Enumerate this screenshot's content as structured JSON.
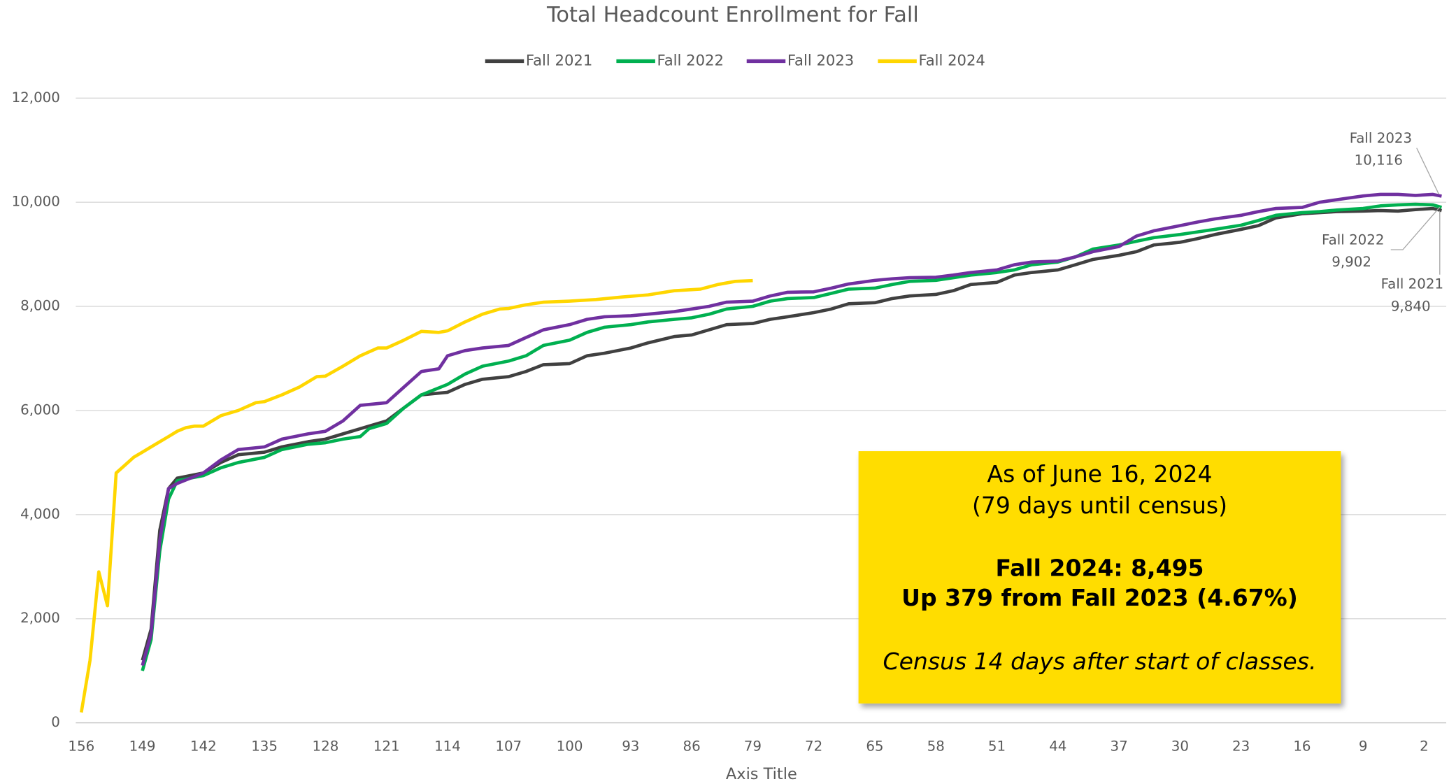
{
  "chart_data": {
    "type": "line",
    "title": "Total Headcount Enrollment for Fall",
    "x_label": "Axis Title",
    "xlim": [
      156,
      0
    ],
    "xticks": [
      156,
      149,
      142,
      135,
      128,
      121,
      114,
      107,
      100,
      93,
      86,
      79,
      72,
      65,
      58,
      51,
      44,
      37,
      30,
      23,
      16,
      9,
      2
    ],
    "ylim": [
      0,
      12000
    ],
    "yticks": [
      {
        "value": 0,
        "label": "0"
      },
      {
        "value": 2000,
        "label": "2,000"
      },
      {
        "value": 4000,
        "label": "4,000"
      },
      {
        "value": 6000,
        "label": "6,000"
      },
      {
        "value": 8000,
        "label": "8,000"
      },
      {
        "value": 10000,
        "label": "10,000"
      },
      {
        "value": 12000,
        "label": "12,000"
      }
    ],
    "grid": true,
    "legend": "top",
    "series": [
      {
        "name": "Fall 2021",
        "color": "#404040",
        "end_label": "9,840",
        "x": [
          149,
          148,
          147,
          146,
          145,
          142,
          140,
          138,
          135,
          133,
          130,
          128,
          126,
          124,
          121,
          119,
          117,
          114,
          112,
          110,
          107,
          105,
          103,
          100,
          98,
          96,
          93,
          91,
          88,
          86,
          84,
          82,
          79,
          77,
          75,
          72,
          70,
          68,
          65,
          63,
          61,
          58,
          56,
          54,
          51,
          49,
          47,
          44,
          42,
          40,
          37,
          35,
          33,
          30,
          28,
          26,
          23,
          21,
          19,
          16,
          14,
          12,
          9,
          7,
          5,
          3,
          1,
          0
        ],
        "values": [
          1200,
          1800,
          3700,
          4500,
          4700,
          4800,
          5000,
          5150,
          5200,
          5300,
          5400,
          5450,
          5550,
          5650,
          5800,
          6050,
          6300,
          6350,
          6500,
          6600,
          6650,
          6750,
          6880,
          6900,
          7050,
          7100,
          7200,
          7300,
          7420,
          7450,
          7550,
          7650,
          7670,
          7750,
          7800,
          7880,
          7950,
          8050,
          8070,
          8150,
          8200,
          8230,
          8300,
          8420,
          8460,
          8600,
          8650,
          8700,
          8800,
          8900,
          8980,
          9050,
          9180,
          9230,
          9300,
          9380,
          9480,
          9550,
          9700,
          9780,
          9800,
          9820,
          9830,
          9840,
          9830,
          9860,
          9880,
          9840
        ]
      },
      {
        "name": "Fall 2022",
        "color": "#00B050",
        "end_label": "9,902",
        "x": [
          149,
          148,
          147,
          146,
          145,
          142,
          140,
          138,
          135,
          133,
          130,
          128,
          126,
          124,
          123,
          121,
          119,
          117,
          114,
          112,
          110,
          107,
          105,
          103,
          100,
          98,
          96,
          93,
          91,
          88,
          86,
          84,
          82,
          79,
          77,
          75,
          72,
          70,
          68,
          65,
          63,
          61,
          58,
          56,
          54,
          51,
          49,
          47,
          44,
          42,
          40,
          37,
          35,
          33,
          30,
          28,
          26,
          23,
          21,
          19,
          16,
          14,
          12,
          9,
          7,
          5,
          3,
          1,
          0
        ],
        "values": [
          1000,
          1600,
          3300,
          4300,
          4650,
          4750,
          4900,
          5000,
          5100,
          5250,
          5350,
          5380,
          5450,
          5500,
          5650,
          5750,
          6050,
          6300,
          6500,
          6700,
          6850,
          6950,
          7050,
          7250,
          7350,
          7500,
          7600,
          7650,
          7700,
          7750,
          7780,
          7850,
          7950,
          8000,
          8100,
          8150,
          8170,
          8250,
          8330,
          8350,
          8420,
          8480,
          8500,
          8550,
          8600,
          8650,
          8700,
          8800,
          8850,
          8950,
          9100,
          9180,
          9250,
          9320,
          9380,
          9430,
          9480,
          9560,
          9650,
          9750,
          9800,
          9820,
          9850,
          9880,
          9930,
          9950,
          9960,
          9950,
          9902
        ]
      },
      {
        "name": "Fall 2023",
        "color": "#7030A0",
        "end_label": "10,116",
        "x": [
          149,
          148,
          147,
          146,
          145,
          142,
          140,
          138,
          135,
          133,
          130,
          128,
          126,
          124,
          121,
          119,
          117,
          115,
          114,
          112,
          110,
          107,
          105,
          103,
          100,
          98,
          96,
          93,
          91,
          88,
          86,
          84,
          82,
          79,
          77,
          75,
          72,
          70,
          68,
          65,
          63,
          61,
          58,
          56,
          54,
          51,
          49,
          47,
          44,
          42,
          40,
          37,
          35,
          33,
          30,
          28,
          26,
          23,
          21,
          19,
          16,
          14,
          12,
          9,
          7,
          5,
          3,
          1,
          0
        ],
        "values": [
          1100,
          1700,
          3500,
          4500,
          4600,
          4800,
          5050,
          5250,
          5300,
          5450,
          5550,
          5600,
          5800,
          6100,
          6150,
          6450,
          6750,
          6800,
          7050,
          7150,
          7200,
          7250,
          7400,
          7550,
          7650,
          7750,
          7800,
          7820,
          7850,
          7900,
          7950,
          8000,
          8080,
          8100,
          8200,
          8270,
          8280,
          8350,
          8430,
          8500,
          8530,
          8550,
          8560,
          8600,
          8650,
          8700,
          8800,
          8850,
          8870,
          8950,
          9050,
          9150,
          9350,
          9450,
          9550,
          9620,
          9680,
          9750,
          9820,
          9880,
          9900,
          10000,
          10050,
          10120,
          10150,
          10150,
          10130,
          10150,
          10116
        ]
      },
      {
        "name": "Fall 2024",
        "color": "#FFD600",
        "x": [
          156,
          155,
          154,
          153,
          152,
          151,
          150,
          149,
          148,
          147,
          146,
          145,
          144,
          143,
          142,
          140,
          138,
          136,
          135,
          133,
          131,
          129,
          128,
          126,
          124,
          122,
          121,
          119,
          117,
          115,
          114,
          112,
          110,
          108,
          107,
          105,
          103,
          100,
          97,
          94,
          91,
          88,
          85,
          83,
          81,
          79
        ],
        "values": [
          200,
          1200,
          2900,
          2250,
          4800,
          4950,
          5100,
          5200,
          5300,
          5400,
          5500,
          5600,
          5670,
          5700,
          5700,
          5900,
          6000,
          6150,
          6170,
          6300,
          6450,
          6650,
          6660,
          6850,
          7050,
          7200,
          7200,
          7350,
          7520,
          7500,
          7530,
          7700,
          7850,
          7950,
          7960,
          8030,
          8080,
          8100,
          8130,
          8180,
          8220,
          8300,
          8330,
          8420,
          8480,
          8495
        ]
      }
    ],
    "annotation": {
      "lines": [
        "As of June 16, 2024",
        "(79 days until census)",
        "Fall 2024: 8,495",
        "Up 379 from Fall 2023 (4.67%)",
        "Census 14 days after start of classes."
      ]
    }
  }
}
